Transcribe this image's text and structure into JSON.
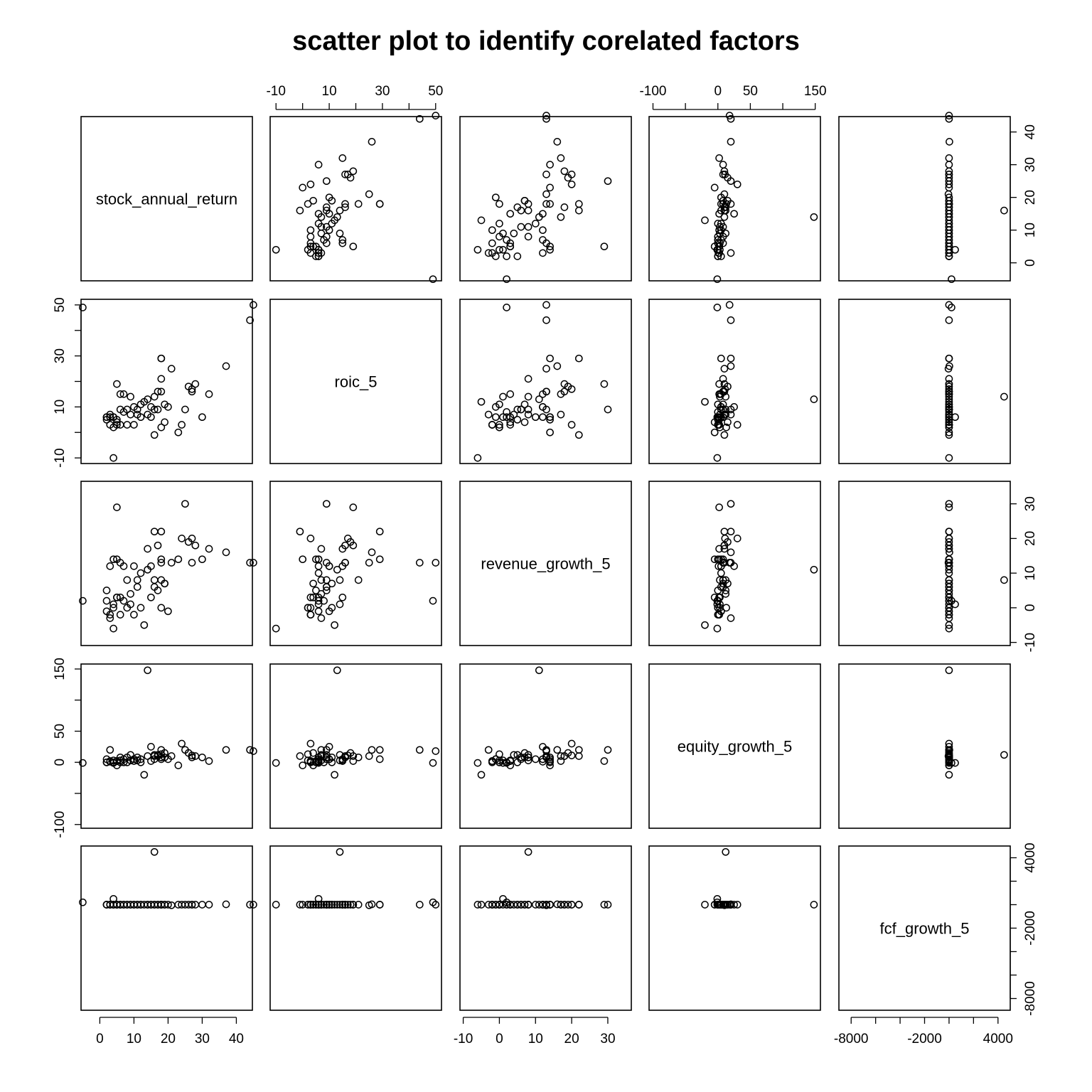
{
  "chart_data": {
    "type": "scatter",
    "title": "scatter plot to identify corelated factors",
    "variables": [
      {
        "name": "stock_annual_return",
        "range": [
          -5.5,
          44.7
        ],
        "ticks": [
          0,
          10,
          20,
          30,
          40
        ],
        "tick_labels": [
          "0",
          "10",
          "20",
          "30",
          "40"
        ]
      },
      {
        "name": "roic_5",
        "range": [
          -12.2,
          52.2
        ],
        "ticks": [
          -10,
          0,
          10,
          20,
          30,
          40,
          50
        ],
        "tick_labels": [
          "-10",
          "10",
          "30",
          "50",
          "-10",
          "10",
          "30",
          "50"
        ]
      },
      {
        "name": "revenue_growth_5",
        "range": [
          -10.9,
          36.5
        ],
        "ticks": [
          -10,
          0,
          10,
          20,
          30
        ],
        "tick_labels": [
          "-10",
          "0",
          "10",
          "20",
          "30"
        ]
      },
      {
        "name": "equity_growth_5",
        "range": [
          -106,
          158
        ],
        "ticks": [
          -100,
          -50,
          0,
          50,
          100,
          150
        ],
        "tick_labels": [
          "-100",
          "0",
          "50",
          "150",
          "-100",
          "50",
          "150"
        ]
      },
      {
        "name": "fcf_growth_5",
        "range": [
          -9000,
          5000
        ],
        "ticks": [
          -8000,
          -6000,
          -4000,
          -2000,
          0,
          2000,
          4000
        ],
        "tick_labels": [
          "-8000",
          "-2000",
          "4000",
          "-8000",
          "-2000",
          "4000"
        ]
      }
    ],
    "rows": [
      [
        -5,
        49,
        2,
        -1,
        200
      ],
      [
        45,
        50,
        13,
        18,
        0
      ],
      [
        44,
        44,
        13,
        20,
        0
      ],
      [
        37,
        26,
        16,
        20,
        30
      ],
      [
        32,
        15,
        17,
        2,
        0
      ],
      [
        30,
        6,
        14,
        8,
        0
      ],
      [
        28,
        19,
        18,
        10,
        0
      ],
      [
        27,
        17,
        20,
        11,
        0
      ],
      [
        27,
        16,
        13,
        8,
        0
      ],
      [
        26,
        18,
        19,
        15,
        0
      ],
      [
        25,
        9,
        30,
        20,
        0
      ],
      [
        24,
        3,
        20,
        30,
        0
      ],
      [
        23,
        0,
        14,
        -5,
        0
      ],
      [
        21,
        25,
        13,
        10,
        -50
      ],
      [
        20,
        10,
        -1,
        5,
        0
      ],
      [
        19,
        11,
        7,
        8,
        0
      ],
      [
        19,
        4,
        7,
        15,
        0
      ],
      [
        18,
        2,
        0,
        13,
        0
      ],
      [
        18,
        29,
        22,
        20,
        0
      ],
      [
        18,
        29,
        14,
        5,
        0
      ],
      [
        18,
        16,
        13,
        8,
        0
      ],
      [
        18,
        21,
        8,
        8,
        0
      ],
      [
        17,
        16,
        18,
        10,
        0
      ],
      [
        17,
        9,
        5,
        12,
        0
      ],
      [
        16,
        -1,
        22,
        10,
        0
      ],
      [
        16,
        9,
        6,
        5,
        0
      ],
      [
        16,
        14,
        8,
        12,
        4500
      ],
      [
        15,
        10,
        12,
        25,
        0
      ],
      [
        15,
        6,
        3,
        2,
        0
      ],
      [
        14,
        13,
        11,
        148,
        0
      ],
      [
        14,
        7,
        17,
        10,
        0
      ],
      [
        13,
        12,
        -5,
        -20,
        0
      ],
      [
        12,
        6,
        10,
        5,
        0
      ],
      [
        12,
        11,
        0,
        0,
        0
      ],
      [
        11,
        7,
        8,
        3,
        0
      ],
      [
        11,
        9,
        6,
        8,
        0
      ],
      [
        10,
        3,
        -2,
        2,
        0
      ],
      [
        10,
        10,
        12,
        5,
        0
      ],
      [
        9,
        14,
        1,
        3,
        0
      ],
      [
        9,
        7,
        4,
        12,
        0
      ],
      [
        8,
        3,
        0,
        0,
        0
      ],
      [
        8,
        9,
        8,
        8,
        0
      ],
      [
        7,
        15,
        12,
        5,
        0
      ],
      [
        7,
        8,
        2,
        0,
        0
      ],
      [
        6,
        3,
        -2,
        0,
        0
      ],
      [
        6,
        15,
        3,
        3,
        0
      ],
      [
        6,
        9,
        13,
        8,
        0
      ],
      [
        5,
        4,
        3,
        -5,
        0
      ],
      [
        5,
        5,
        14,
        2,
        0
      ],
      [
        5,
        3,
        3,
        2,
        0
      ],
      [
        5,
        19,
        29,
        2,
        0
      ],
      [
        4,
        2,
        0,
        3,
        0
      ],
      [
        4,
        6,
        14,
        0,
        0
      ],
      [
        4,
        -10,
        -6,
        -1,
        0
      ],
      [
        4,
        6,
        1,
        -1,
        500
      ],
      [
        3,
        6,
        12,
        1,
        0
      ],
      [
        3,
        7,
        -3,
        20,
        0
      ],
      [
        3,
        3,
        -2,
        2,
        0
      ],
      [
        2,
        6,
        -1,
        5,
        0
      ],
      [
        2,
        5,
        5,
        0,
        0
      ],
      [
        2,
        6,
        2,
        0,
        0
      ]
    ],
    "xlabel": "",
    "ylabel": "",
    "grid": false
  }
}
